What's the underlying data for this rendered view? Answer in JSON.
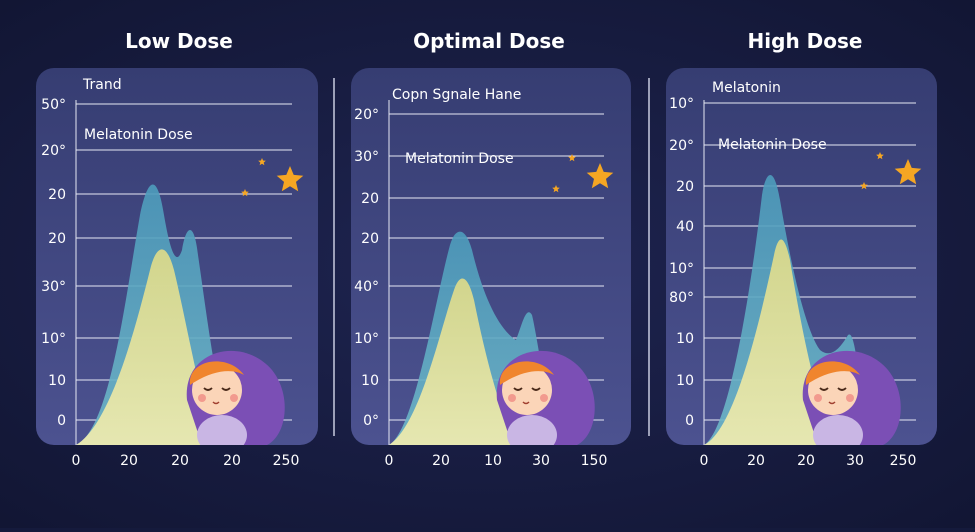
{
  "panels": [
    {
      "title": "Low Dose",
      "labels": [
        "Trand",
        "Melatonin Dose"
      ],
      "y_labels": [
        "50°",
        "20°",
        "20",
        "20",
        "30°",
        "10°",
        "10",
        "0"
      ],
      "x_labels": [
        "0",
        "20",
        "20",
        "20",
        "250"
      ]
    },
    {
      "title": "Optimal Dose",
      "labels": [
        "Copn Sgnale Hane",
        "Melatonin Dose"
      ],
      "y_labels": [
        "20°",
        "30°",
        "20",
        "20",
        "40°",
        "10°",
        "10",
        "0°"
      ],
      "x_labels": [
        "0",
        "20",
        "10",
        "30",
        "150"
      ]
    },
    {
      "title": "High Dose",
      "labels": [
        "Melatonin",
        "Melatonin Dose"
      ],
      "y_labels": [
        "10°",
        "20°",
        "20",
        "40",
        "10°",
        "80°",
        "10",
        "10",
        "0"
      ],
      "x_labels": [
        "0",
        "20",
        "20",
        "30",
        "250"
      ]
    }
  ]
}
